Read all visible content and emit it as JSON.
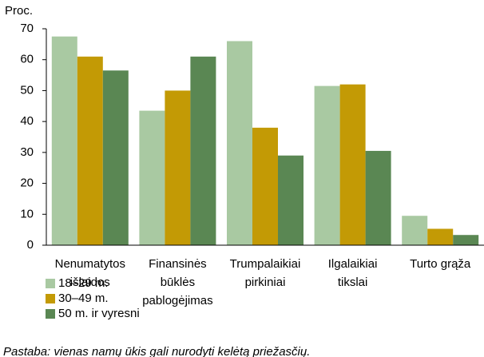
{
  "chart_data": {
    "type": "bar",
    "y_label": "Proc.",
    "categories": [
      [
        "Nenumatytos",
        "išlaidos"
      ],
      [
        "Finansinės",
        "būklės",
        "pablogėjimas"
      ],
      [
        "Trumpalaikiai",
        "pirkiniai"
      ],
      [
        "Ilgalaikiai",
        "tikslai"
      ],
      [
        "Turto grąža"
      ]
    ],
    "series": [
      {
        "name": "18–29 m.",
        "color": "#a9c9a2",
        "values": [
          67.5,
          43.5,
          66,
          51.5,
          9.5
        ]
      },
      {
        "name": "30–49 m.",
        "color": "#c39a05",
        "values": [
          61,
          50,
          38,
          52,
          5.3
        ]
      },
      {
        "name": "50 m. ir vyresni",
        "color": "#5a8753",
        "values": [
          56.5,
          61,
          29,
          30.5,
          3.3
        ]
      }
    ],
    "ylim": [
      0,
      70
    ],
    "yticks": [
      0,
      10,
      20,
      30,
      40,
      50,
      60,
      70
    ],
    "note": "Pastaba: vienas namų ūkis gali nurodyti kelėtą priežasčių."
  }
}
